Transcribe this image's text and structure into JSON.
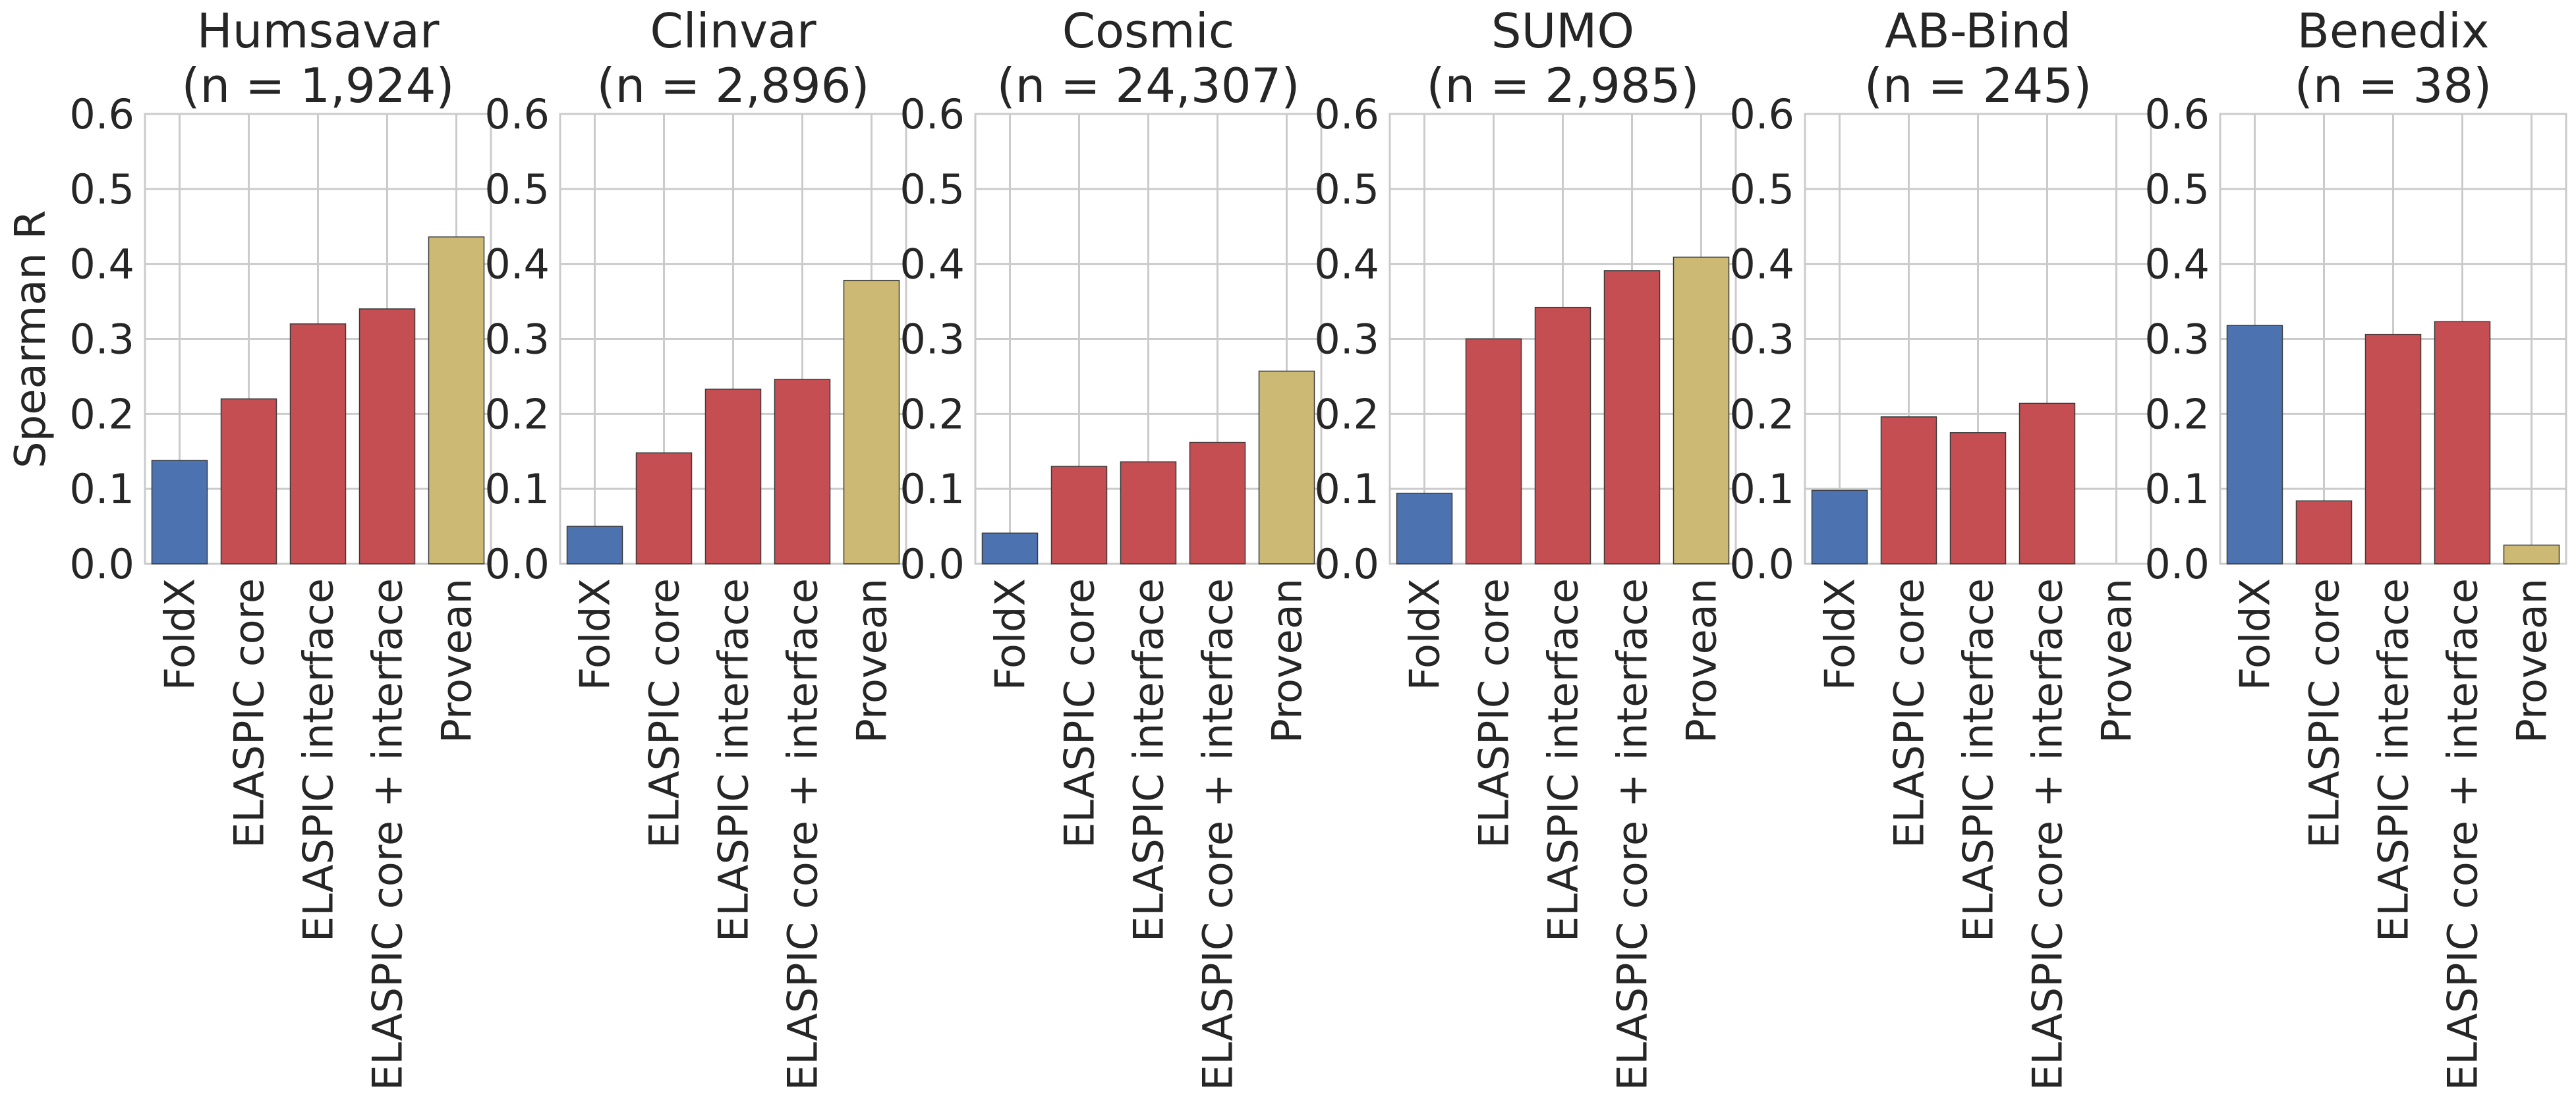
{
  "ylabel": "Spearman R",
  "colors": {
    "foldx": "#4C72B0",
    "elaspic": "#C44E52",
    "provean": "#CCB974",
    "grid": "#cbcbcb",
    "text": "#262626"
  },
  "chart_data": [
    {
      "type": "bar",
      "title": "Humsavar\n(n = 1,924)",
      "categories": [
        "FoldX",
        "ELASPIC core",
        "ELASPIC interface",
        "ELASPIC core + interface",
        "Provean"
      ],
      "values": [
        0.138,
        0.22,
        0.32,
        0.34,
        0.436
      ],
      "ylim": [
        0,
        0.6
      ],
      "yticks": [
        "0.0",
        "0.1",
        "0.2",
        "0.3",
        "0.4",
        "0.5",
        "0.6"
      ],
      "grid": true
    },
    {
      "type": "bar",
      "title": "Clinvar\n(n = 2,896)",
      "categories": [
        "FoldX",
        "ELASPIC core",
        "ELASPIC interface",
        "ELASPIC core + interface",
        "Provean"
      ],
      "values": [
        0.05,
        0.148,
        0.233,
        0.246,
        0.378
      ],
      "ylim": [
        0,
        0.6
      ],
      "yticks": [
        "0.0",
        "0.1",
        "0.2",
        "0.3",
        "0.4",
        "0.5",
        "0.6"
      ],
      "grid": true
    },
    {
      "type": "bar",
      "title": "Cosmic\n(n = 24,307)",
      "categories": [
        "FoldX",
        "ELASPIC core",
        "ELASPIC interface",
        "ELASPIC core + interface",
        "Provean"
      ],
      "values": [
        0.041,
        0.13,
        0.136,
        0.162,
        0.257
      ],
      "ylim": [
        0,
        0.6
      ],
      "yticks": [
        "0.0",
        "0.1",
        "0.2",
        "0.3",
        "0.4",
        "0.5",
        "0.6"
      ],
      "grid": true
    },
    {
      "type": "bar",
      "title": "SUMO\n(n = 2,985)",
      "categories": [
        "FoldX",
        "ELASPIC core",
        "ELASPIC interface",
        "ELASPIC core + interface",
        "Provean"
      ],
      "values": [
        0.094,
        0.3,
        0.342,
        0.391,
        0.409
      ],
      "ylim": [
        0,
        0.6
      ],
      "yticks": [
        "0.0",
        "0.1",
        "0.2",
        "0.3",
        "0.4",
        "0.5",
        "0.6"
      ],
      "grid": true
    },
    {
      "type": "bar",
      "title": "AB-Bind\n(n = 245)",
      "categories": [
        "FoldX",
        "ELASPIC core",
        "ELASPIC interface",
        "ELASPIC core + interface",
        "Provean"
      ],
      "values": [
        0.098,
        0.196,
        0.175,
        0.214,
        0.0
      ],
      "ylim": [
        0,
        0.6
      ],
      "yticks": [
        "0.0",
        "0.1",
        "0.2",
        "0.3",
        "0.4",
        "0.5",
        "0.6"
      ],
      "grid": true
    },
    {
      "type": "bar",
      "title": "Benedix\n(n = 38)",
      "categories": [
        "FoldX",
        "ELASPIC core",
        "ELASPIC interface",
        "ELASPIC core + interface",
        "Provean"
      ],
      "values": [
        0.318,
        0.084,
        0.306,
        0.323,
        0.025
      ],
      "ylim": [
        0,
        0.6
      ],
      "yticks": [
        "0.0",
        "0.1",
        "0.2",
        "0.3",
        "0.4",
        "0.5",
        "0.6"
      ],
      "grid": true
    }
  ]
}
